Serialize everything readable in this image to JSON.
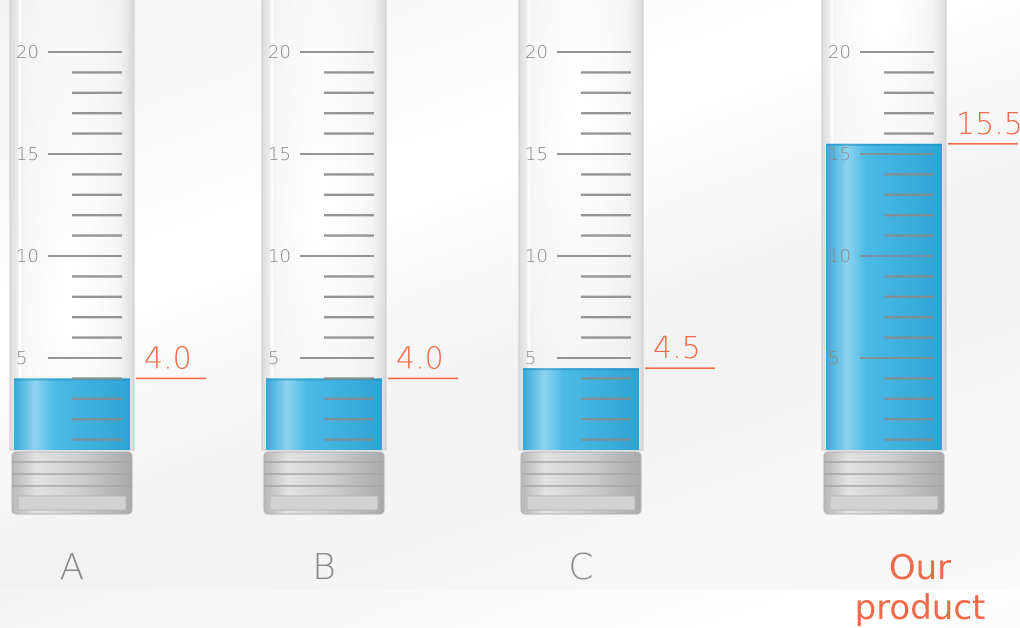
{
  "scale": {
    "major_ticks": [
      "5",
      "10",
      "15",
      "20"
    ]
  },
  "tubes": [
    {
      "id": "a",
      "label": "A",
      "volume_display": "4.0",
      "volume": 4.0,
      "highlight": false
    },
    {
      "id": "b",
      "label": "B",
      "volume_display": "4.0",
      "volume": 4.0,
      "highlight": false
    },
    {
      "id": "c",
      "label": "C",
      "volume_display": "4.5",
      "volume": 4.5,
      "highlight": false
    },
    {
      "id": "ours",
      "label": "Our product",
      "volume_display": "15.5",
      "volume": 15.5,
      "highlight": true
    }
  ],
  "colors": {
    "liquid": "#3fb6e4",
    "accent": "#ef6a4a",
    "label": "#888888",
    "tick": "#8a8a8a",
    "tube": "#e3e3e3",
    "cap": "#c4c4c4"
  }
}
